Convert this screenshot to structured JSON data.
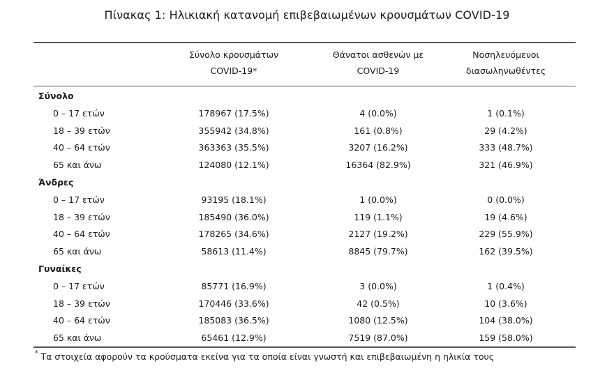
{
  "title": "Πίνακας 1: Ηλικιακή κατανομή επιβεβαιωμένων κρουσμάτων COVID-19",
  "columns": [
    {
      "line1": "Σύνολο κρουσμάτων",
      "line2": "COVID-19*"
    },
    {
      "line1": "Θάνατοι ασθενών με",
      "line2": "COVID-19"
    },
    {
      "line1": "Νοσηλευόμενοι",
      "line2": "διασωληνωθέντες"
    }
  ],
  "groups": [
    {
      "name": "Σύνολο",
      "rows": [
        {
          "age": "0 – 17 ετών",
          "cases": "178967 (17.5%)",
          "deaths": "4 (0.0%)",
          "intubated": "1 (0.1%)"
        },
        {
          "age": "18 – 39 ετών",
          "cases": "355942 (34.8%)",
          "deaths": "161 (0.8%)",
          "intubated": "29 (4.2%)"
        },
        {
          "age": "40 – 64 ετών",
          "cases": "363363 (35.5%)",
          "deaths": "3207 (16.2%)",
          "intubated": "333 (48.7%)"
        },
        {
          "age": "65 και άνω",
          "cases": "124080 (12.1%)",
          "deaths": "16364 (82.9%)",
          "intubated": "321 (46.9%)"
        }
      ]
    },
    {
      "name": "Άνδρες",
      "rows": [
        {
          "age": "0 – 17 ετών",
          "cases": "93195 (18.1%)",
          "deaths": "1 (0.0%)",
          "intubated": "0 (0.0%)"
        },
        {
          "age": "18 – 39 ετών",
          "cases": "185490 (36.0%)",
          "deaths": "119 (1.1%)",
          "intubated": "19 (4.6%)"
        },
        {
          "age": "40 – 64 ετών",
          "cases": "178265 (34.6%)",
          "deaths": "2127 (19.2%)",
          "intubated": "229 (55.9%)"
        },
        {
          "age": "65 και άνω",
          "cases": "58613 (11.4%)",
          "deaths": "8845 (79.7%)",
          "intubated": "162 (39.5%)"
        }
      ]
    },
    {
      "name": "Γυναίκες",
      "rows": [
        {
          "age": "0 – 17 ετών",
          "cases": "85771 (16.9%)",
          "deaths": "3 (0.0%)",
          "intubated": "1 (0.4%)"
        },
        {
          "age": "18 – 39 ετών",
          "cases": "170446 (33.6%)",
          "deaths": "42 (0.5%)",
          "intubated": "10 (3.6%)"
        },
        {
          "age": "40 – 64 ετών",
          "cases": "185083 (36.5%)",
          "deaths": "1080 (12.5%)",
          "intubated": "104 (38.0%)"
        },
        {
          "age": "65 και άνω",
          "cases": "65461 (12.9%)",
          "deaths": "7519 (87.0%)",
          "intubated": "159 (58.0%)"
        }
      ]
    }
  ],
  "footnote": {
    "marker": "*",
    "text": "Τα στοιχεία αφορούν τα κρούσματα εκείνα για τα οποία είναι γνωστή και επιβεβαιωμένη η ηλικία τους"
  }
}
